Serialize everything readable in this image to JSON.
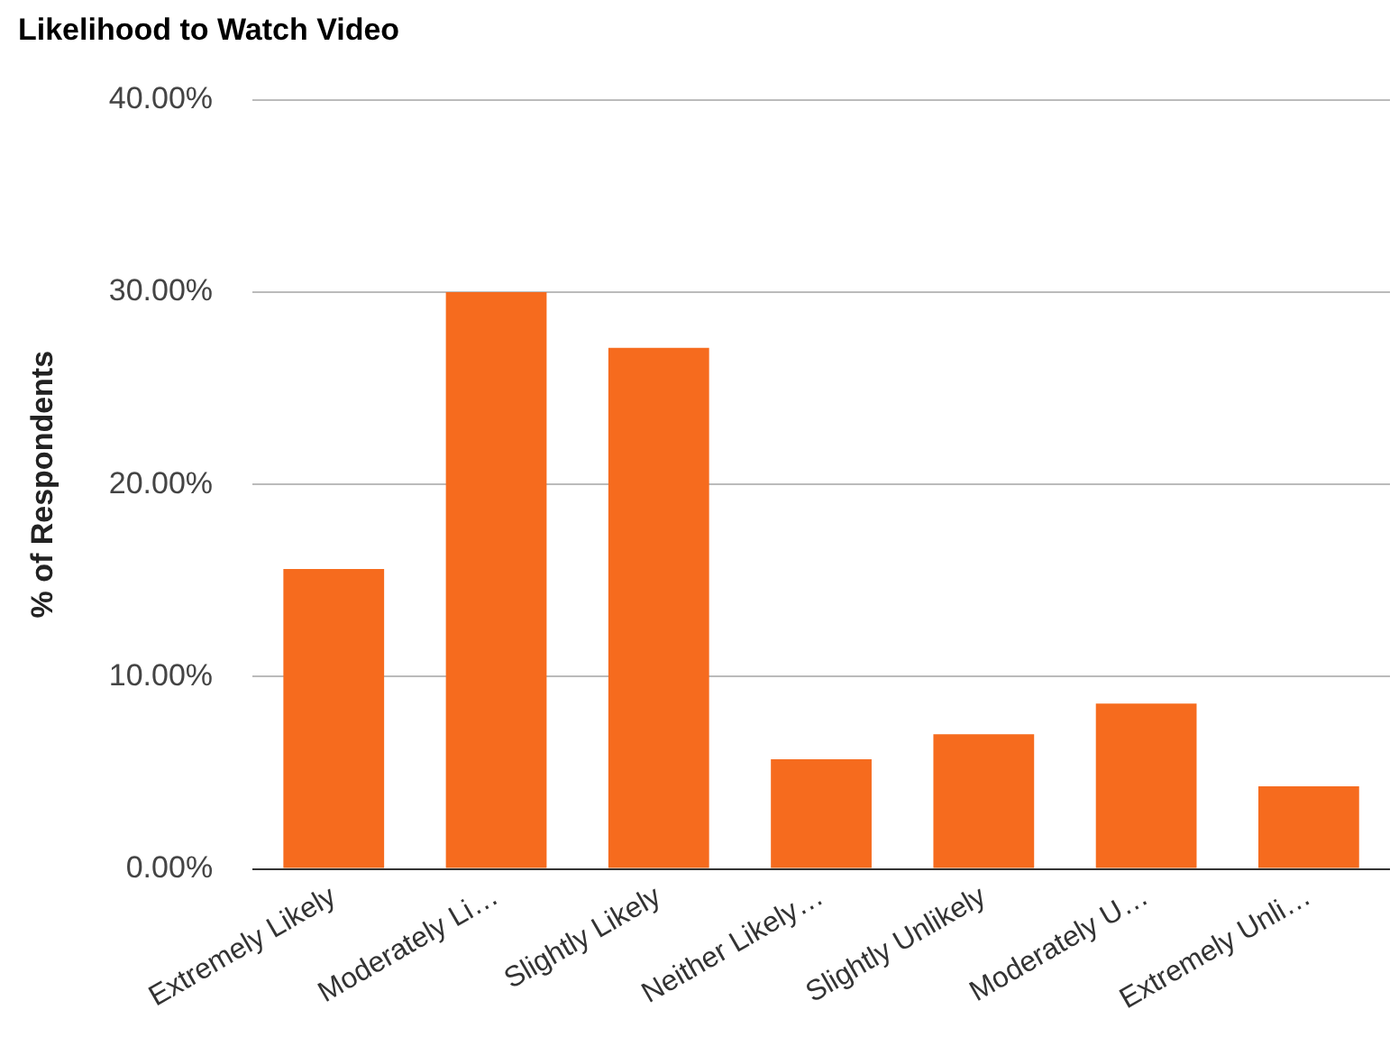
{
  "chart_data": {
    "type": "bar",
    "title": "Likelihood to Watch Video",
    "ylabel": "% of Respondents",
    "categories": [
      "Extremely Likely",
      "Moderately Li…",
      "Slightly Likely",
      "Neither Likely…",
      "Slightly Unlikely",
      "Moderately U…",
      "Extremely Unli…"
    ],
    "values": [
      15.6,
      30.0,
      27.1,
      5.7,
      7.0,
      8.6,
      4.3
    ],
    "color": "#f66b1e",
    "ylim": [
      0,
      40
    ],
    "yticks": [
      {
        "value": 0,
        "label": "0.00%"
      },
      {
        "value": 10,
        "label": "10.00%"
      },
      {
        "value": 20,
        "label": "20.00%"
      },
      {
        "value": 30,
        "label": "30.00%"
      },
      {
        "value": 40,
        "label": "40.00%"
      }
    ],
    "grid": "y",
    "legend": false
  }
}
